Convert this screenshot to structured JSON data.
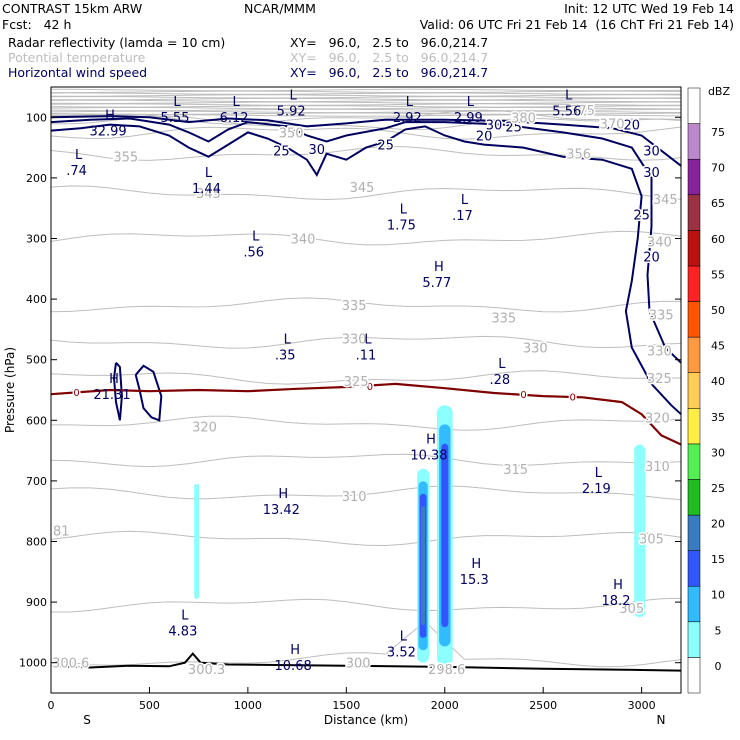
{
  "header": {
    "model": "CONTRAST 15km ARW",
    "center": "NCAR/MMM",
    "init": "Init: 12 UTC Wed 19 Feb 14",
    "fcst": "Fcst:   42 h",
    "valid": "Valid: 06 UTC Fri 21 Feb 14  (16 ChT Fri 21 Feb 14)",
    "fields": [
      {
        "name": "Radar reflectivity (lamda = 10 cm)",
        "xy": "XY=   96.0,   2.5 to   96.0,214.7",
        "color": "#000000"
      },
      {
        "name": "Potential temperature",
        "xy": "XY=   96.0,   2.5 to   96.0,214.7",
        "color": "#bdbdbd"
      },
      {
        "name": "Horizontal wind speed",
        "xy": "XY=   96.0,   2.5 to   96.0,214.7",
        "color": "#00005f"
      }
    ]
  },
  "chart_data": {
    "type": "cross-section",
    "xlabel": "Distance (km)",
    "ylabel": "Pressure (hPa)",
    "xlim": [
      0,
      3200
    ],
    "ylim": [
      1050,
      50
    ],
    "x_ticks": [
      0,
      500,
      1000,
      1500,
      2000,
      2500,
      3000
    ],
    "y_ticks": [
      100,
      200,
      300,
      400,
      500,
      600,
      700,
      800,
      900,
      1000
    ],
    "end_labels": {
      "left": "S",
      "right": "N"
    },
    "colorbar": {
      "unit": "dBZ",
      "levels": [
        0,
        5,
        10,
        15,
        20,
        25,
        30,
        35,
        40,
        45,
        50,
        55,
        60,
        65,
        70,
        75
      ],
      "colors": [
        "#ffffff",
        "#8cffff",
        "#33bbff",
        "#3355ff",
        "#3a7cc0",
        "#22bb22",
        "#55ee55",
        "#ffee44",
        "#ffcc55",
        "#ff9944",
        "#ff5500",
        "#ff2222",
        "#bb1111",
        "#993344",
        "#882299",
        "#bb88cc"
      ]
    },
    "wind_speed_contours": [
      {
        "value": 20,
        "at": [
          [
            2200,
            130
          ],
          [
            3050,
            330
          ],
          [
            2950,
            112
          ]
        ]
      },
      {
        "value": 25,
        "at": [
          [
            1170,
            155
          ],
          [
            1700,
            145
          ],
          [
            2350,
            115
          ],
          [
            3000,
            260
          ]
        ]
      },
      {
        "value": 30,
        "at": [
          [
            1350,
            152
          ],
          [
            2250,
            112
          ],
          [
            3050,
            155
          ],
          [
            3050,
            190
          ]
        ]
      }
    ],
    "theta_contours": [
      300,
      305,
      310,
      315,
      320,
      325,
      330,
      335,
      340,
      345,
      350,
      355,
      370,
      375,
      380
    ],
    "theta_labels": [
      {
        "text": "300.6",
        "x": 100,
        "y": 1000
      },
      {
        "text": "300.3",
        "x": 790,
        "y": 1010
      },
      {
        "text": "300",
        "x": 1560,
        "y": 1000
      },
      {
        "text": "298.6",
        "x": 2010,
        "y": 1010
      },
      {
        "text": "305",
        "x": 2950,
        "y": 910
      },
      {
        "text": "305",
        "x": 3050,
        "y": 795
      },
      {
        "text": "310",
        "x": 1540,
        "y": 725
      },
      {
        "text": "310",
        "x": 3080,
        "y": 675
      },
      {
        "text": "315",
        "x": 2360,
        "y": 680
      },
      {
        "text": "320",
        "x": 780,
        "y": 610
      },
      {
        "text": "320",
        "x": 3080,
        "y": 595
      },
      {
        "text": "325",
        "x": 1550,
        "y": 535
      },
      {
        "text": "325",
        "x": 3090,
        "y": 530
      },
      {
        "text": "330",
        "x": 1540,
        "y": 465
      },
      {
        "text": "330",
        "x": 2460,
        "y": 480
      },
      {
        "text": "330",
        "x": 3090,
        "y": 485
      },
      {
        "text": "335",
        "x": 1540,
        "y": 410
      },
      {
        "text": "335",
        "x": 2300,
        "y": 430
      },
      {
        "text": "335",
        "x": 3100,
        "y": 425
      },
      {
        "text": "340",
        "x": 1280,
        "y": 300
      },
      {
        "text": "340",
        "x": 3090,
        "y": 305
      },
      {
        "text": "345",
        "x": 1580,
        "y": 215
      },
      {
        "text": "345",
        "x": 800,
        "y": 225
      },
      {
        "text": "345",
        "x": 3120,
        "y": 235
      },
      {
        "text": "350",
        "x": 1220,
        "y": 125
      },
      {
        "text": "355",
        "x": 380,
        "y": 165
      },
      {
        "text": "356",
        "x": 2680,
        "y": 160
      },
      {
        "text": "370",
        "x": 2850,
        "y": 110
      },
      {
        "text": "375",
        "x": 2700,
        "y": 88
      },
      {
        "text": "380",
        "x": 2400,
        "y": 100
      }
    ],
    "zero_isotherm": {
      "label": "0",
      "points": [
        [
          0,
          557
        ],
        [
          300,
          550
        ],
        [
          500,
          552
        ],
        [
          750,
          550
        ],
        [
          1000,
          552
        ],
        [
          1250,
          548
        ],
        [
          1500,
          545
        ],
        [
          1750,
          540
        ],
        [
          2000,
          547
        ],
        [
          2250,
          555
        ],
        [
          2500,
          560
        ],
        [
          2700,
          562
        ],
        [
          2900,
          570
        ],
        [
          3000,
          590
        ],
        [
          3100,
          625
        ],
        [
          3200,
          640
        ]
      ]
    },
    "terrain": {
      "points": [
        [
          0,
          1005
        ],
        [
          200,
          1008
        ],
        [
          400,
          1005
        ],
        [
          600,
          1006
        ],
        [
          680,
          1000
        ],
        [
          720,
          985
        ],
        [
          760,
          1000
        ],
        [
          850,
          1002
        ],
        [
          900,
          1003
        ],
        [
          1200,
          1004
        ],
        [
          1500,
          1005
        ],
        [
          2000,
          1007
        ],
        [
          2500,
          1010
        ],
        [
          3000,
          1012
        ],
        [
          3200,
          1013
        ]
      ]
    },
    "reflectivity_cells": [
      {
        "x_km": 740,
        "top": 705,
        "bottom": 895,
        "width_km": 25,
        "max_dbz": 7
      },
      {
        "x_km": 1890,
        "top": 680,
        "bottom": 1000,
        "width_km": 60,
        "max_dbz": 22
      },
      {
        "x_km": 2000,
        "top": 575,
        "bottom": 1005,
        "width_km": 80,
        "max_dbz": 18
      },
      {
        "x_km": 2990,
        "top": 640,
        "bottom": 925,
        "width_km": 55,
        "max_dbz": 8
      }
    ],
    "extrema_labels": [
      {
        "kind": "H",
        "value": "32.99",
        "x": 300,
        "y": 110
      },
      {
        "kind": "L",
        "value": "5.55",
        "x": 640,
        "y": 88
      },
      {
        "kind": "L",
        "value": "6.12",
        "x": 940,
        "y": 88
      },
      {
        "kind": "L",
        "value": "5.92",
        "x": 1230,
        "y": 77
      },
      {
        "kind": "L",
        "value": "2.92",
        "x": 1820,
        "y": 88
      },
      {
        "kind": "L",
        "value": "2.99",
        "x": 2130,
        "y": 88
      },
      {
        "kind": "L",
        "value": "5.56",
        "x": 2630,
        "y": 77
      },
      {
        "kind": "L",
        "value": ".74",
        "x": 140,
        "y": 175
      },
      {
        "kind": "L",
        "value": "1.44",
        "x": 800,
        "y": 205
      },
      {
        "kind": "L",
        "value": "1.75",
        "x": 1790,
        "y": 265
      },
      {
        "kind": "L",
        "value": ".17",
        "x": 2100,
        "y": 250
      },
      {
        "kind": "L",
        "value": ".56",
        "x": 1040,
        "y": 310
      },
      {
        "kind": "H",
        "value": "5.77",
        "x": 1970,
        "y": 360
      },
      {
        "kind": "L",
        "value": ".35",
        "x": 1200,
        "y": 480
      },
      {
        "kind": "L",
        "value": ".11",
        "x": 1610,
        "y": 480
      },
      {
        "kind": "L",
        "value": ".28",
        "x": 2290,
        "y": 520
      },
      {
        "kind": "H",
        "value": "21.31",
        "x": 320,
        "y": 545
      },
      {
        "kind": "H",
        "value": "10.38",
        "x": 1930,
        "y": 645
      },
      {
        "kind": "L",
        "value": "2.19",
        "x": 2780,
        "y": 700
      },
      {
        "kind": "H",
        "value": "13.42",
        "x": 1180,
        "y": 735
      },
      {
        "kind": "H",
        "value": "15.3",
        "x": 2160,
        "y": 850
      },
      {
        "kind": "H",
        "value": "18.2",
        "x": 2880,
        "y": 885
      },
      {
        "kind": "L",
        "value": "4.83",
        "x": 680,
        "y": 935
      },
      {
        "kind": "L",
        "value": "3.52",
        "x": 1790,
        "y": 970
      },
      {
        "kind": "H",
        "value": "10.68",
        "x": 1240,
        "y": 992
      }
    ],
    "edge_label": {
      "text": "81",
      "x": 0,
      "y": 782
    }
  }
}
